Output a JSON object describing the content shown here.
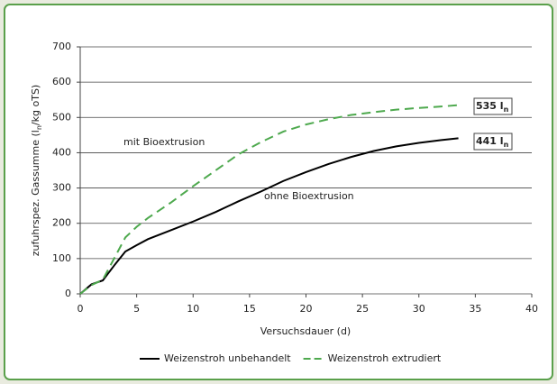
{
  "chart_data": {
    "type": "line",
    "xlabel": "Versuchsdauer (d)",
    "ylabel_parts": [
      "zufuhrspez. Gassumme (l",
      "n",
      "/kg oTS)"
    ],
    "xlim": [
      0,
      40
    ],
    "xticks": [
      0,
      5,
      10,
      15,
      20,
      25,
      30,
      35,
      40
    ],
    "ylim": [
      0,
      700
    ],
    "yticks": [
      0,
      100,
      200,
      300,
      400,
      500,
      600,
      700
    ],
    "grid": true,
    "legend": "bottom",
    "series": [
      {
        "name": "Weizenstroh unbehandelt",
        "color": "#000000",
        "dash": false,
        "x": [
          0,
          1,
          2,
          3,
          4,
          5,
          6,
          8,
          10,
          12,
          14,
          16,
          18,
          20,
          22,
          24,
          26,
          28,
          30,
          32,
          33.5
        ],
        "values": [
          0,
          27,
          38,
          80,
          120,
          138,
          155,
          180,
          205,
          232,
          262,
          290,
          320,
          345,
          368,
          388,
          405,
          418,
          428,
          436,
          441
        ]
      },
      {
        "name": "Weizenstroh extrudiert",
        "color": "#4ea94e",
        "dash": true,
        "x": [
          0,
          1,
          2,
          3,
          4,
          5,
          6,
          8,
          10,
          12,
          14,
          16,
          18,
          20,
          22,
          24,
          26,
          28,
          30,
          32,
          33.5
        ],
        "values": [
          0,
          25,
          40,
          100,
          160,
          190,
          215,
          258,
          305,
          350,
          395,
          430,
          460,
          480,
          495,
          507,
          515,
          522,
          527,
          531,
          535
        ]
      }
    ],
    "annotations": [
      {
        "text": "mit Bioextrusion",
        "color": "#4ea94e"
      },
      {
        "text": "ohne Bioextrusion",
        "color": "#000000"
      },
      {
        "text": "535 l",
        "sub": "n",
        "color": "#000000"
      },
      {
        "text": "441 l",
        "sub": "n",
        "color": "#000000"
      }
    ]
  }
}
